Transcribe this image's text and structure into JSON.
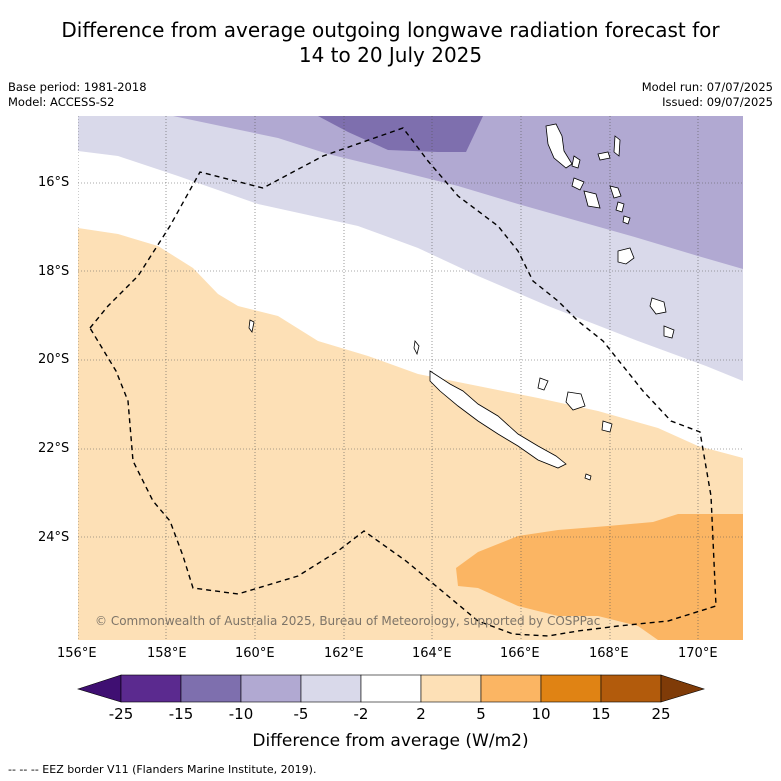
{
  "title_line1": "Difference from average outgoing longwave radiation forecast for",
  "title_line2": "14 to 20 July 2025",
  "base_period": "Base period: 1981-2018",
  "model": "Model: ACCESS-S2",
  "model_run": "Model run: 07/07/2025",
  "issued": "Issued: 09/07/2025",
  "lat_labels": [
    "16°S",
    "18°S",
    "20°S",
    "22°S",
    "24°S"
  ],
  "lon_labels": [
    "156°E",
    "158°E",
    "160°E",
    "162°E",
    "164°E",
    "166°E",
    "168°E",
    "170°E"
  ],
  "copyright": "© Commonwealth of Australia 2025, Bureau of Meteorology, supported by COSPPac",
  "colorbar": {
    "label": "Difference from average (W/m2)",
    "ticks": [
      "-25",
      "-15",
      "-10",
      "-5",
      "-2",
      "2",
      "5",
      "10",
      "15",
      "25"
    ],
    "colors": [
      "#3f0f72",
      "#5b2a8f",
      "#7e6fae",
      "#b1a9d2",
      "#d9d9ea",
      "#ffffff",
      "#fde0b6",
      "#fbb563",
      "#e08314",
      "#b25b0c",
      "#7f3b08"
    ]
  },
  "footer": "--  --  -- EEZ border V11 (Flanders Marine Institute, 2019)."
}
